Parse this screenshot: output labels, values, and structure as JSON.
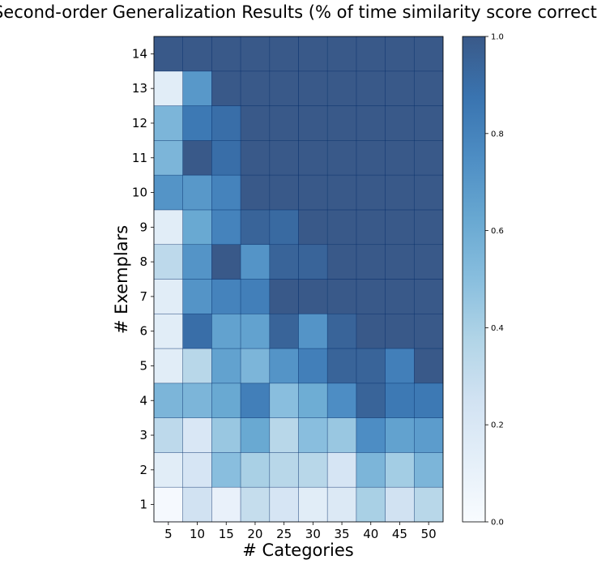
{
  "chart_data": {
    "type": "heatmap",
    "title": "Second-order Generalization Results (% of time similarity score correct)",
    "xlabel": "# Categories",
    "ylabel": "# Exemplars",
    "x_categories": [
      "5",
      "10",
      "15",
      "20",
      "25",
      "30",
      "35",
      "40",
      "45",
      "50"
    ],
    "y_categories": [
      "1",
      "2",
      "3",
      "4",
      "5",
      "6",
      "7",
      "8",
      "9",
      "10",
      "11",
      "12",
      "13",
      "14"
    ],
    "values": [
      [
        0.02,
        0.25,
        0.1,
        0.3,
        0.22,
        0.15,
        0.18,
        0.4,
        0.25,
        0.35
      ],
      [
        0.15,
        0.22,
        0.5,
        0.4,
        0.35,
        0.35,
        0.22,
        0.55,
        0.42,
        0.55
      ],
      [
        0.33,
        0.2,
        0.45,
        0.62,
        0.35,
        0.5,
        0.45,
        0.75,
        0.65,
        0.68
      ],
      [
        0.55,
        0.55,
        0.62,
        0.82,
        0.5,
        0.6,
        0.75,
        0.95,
        0.85,
        0.85
      ],
      [
        0.15,
        0.35,
        0.65,
        0.55,
        0.72,
        0.82,
        0.95,
        0.95,
        0.82,
        1.0
      ],
      [
        0.15,
        0.9,
        0.65,
        0.65,
        0.95,
        0.72,
        0.95,
        1.0,
        1.0,
        1.0
      ],
      [
        0.15,
        0.72,
        0.8,
        0.82,
        1.0,
        1.0,
        1.0,
        1.0,
        1.0,
        1.0
      ],
      [
        0.33,
        0.72,
        1.0,
        0.72,
        0.95,
        0.95,
        1.0,
        1.0,
        1.0,
        1.0
      ],
      [
        0.15,
        0.62,
        0.8,
        0.95,
        0.92,
        1.0,
        1.0,
        1.0,
        1.0,
        1.0
      ],
      [
        0.72,
        0.7,
        0.8,
        1.0,
        1.0,
        1.0,
        1.0,
        1.0,
        1.0,
        1.0
      ],
      [
        0.55,
        1.0,
        0.9,
        1.0,
        1.0,
        1.0,
        1.0,
        1.0,
        1.0,
        1.0
      ],
      [
        0.55,
        0.85,
        0.9,
        1.0,
        1.0,
        1.0,
        1.0,
        1.0,
        1.0,
        1.0
      ],
      [
        0.15,
        0.7,
        1.0,
        1.0,
        1.0,
        1.0,
        1.0,
        1.0,
        1.0,
        1.0
      ],
      [
        1.0,
        1.0,
        1.0,
        1.0,
        1.0,
        1.0,
        1.0,
        1.0,
        1.0,
        1.0
      ]
    ],
    "colorbar": {
      "range": [
        0.0,
        1.0
      ],
      "ticks": [
        "0.0",
        "0.2",
        "0.4",
        "0.6",
        "0.8",
        "1.0"
      ]
    },
    "colormap": "Blues",
    "colors": {
      "low": "#f7fbff",
      "high": "#08306b"
    },
    "grid": false
  }
}
